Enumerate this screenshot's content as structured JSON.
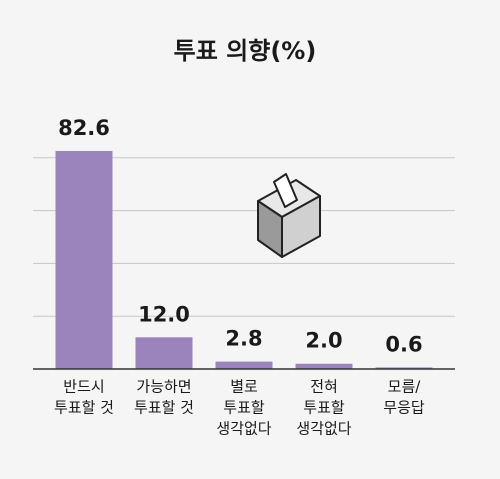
{
  "chart_data": {
    "type": "bar",
    "title": "투표 의향(%)",
    "categories": [
      [
        "반드시",
        "투표할 것"
      ],
      [
        "가능하면",
        "투표할 것"
      ],
      [
        "별로",
        "투표할",
        "생각없다"
      ],
      [
        "전혀",
        "투표할",
        "생각없다"
      ],
      [
        "모름/",
        "무응답"
      ]
    ],
    "values": [
      82.6,
      12.0,
      2.8,
      2.0,
      0.6
    ],
    "value_labels": [
      "82.6",
      "12.0",
      "2.8",
      "2.0",
      "0.6"
    ],
    "color": "#9b84bc",
    "ylim": [
      0,
      100
    ],
    "ygrid": [
      20,
      40,
      60,
      80
    ]
  }
}
